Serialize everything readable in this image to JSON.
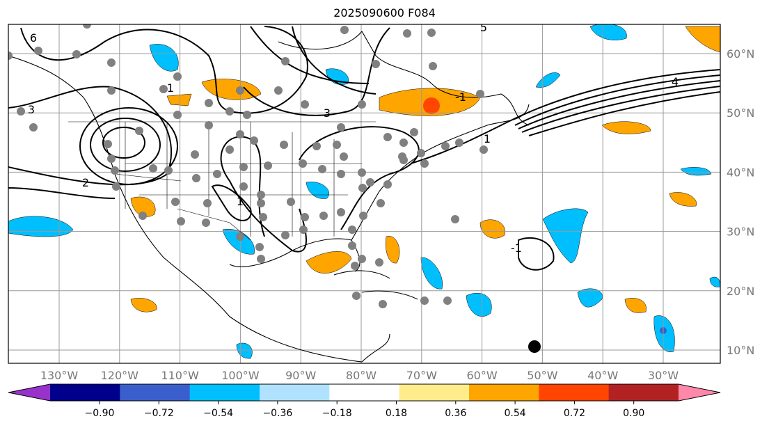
{
  "title": "2025090600 F084",
  "map": {
    "lon_ticks": [
      -130,
      -120,
      -110,
      -100,
      -90,
      -80,
      -70,
      -60,
      -50,
      -40,
      -30
    ],
    "lon_labels": [
      "130°W",
      "120°W",
      "110°W",
      "100°W",
      "90°W",
      "80°W",
      "70°W",
      "60°W",
      "50°W",
      "40°W",
      "30°W"
    ],
    "lat_ticks": [
      60,
      50,
      40,
      30,
      20,
      10
    ],
    "lat_labels": [
      "60°N",
      "50°N",
      "40°N",
      "30°N",
      "20°N",
      "10°N"
    ],
    "contour_labels": [
      "3",
      "2",
      "1",
      "3",
      "1",
      "4",
      "1",
      "-1",
      "-1",
      "6",
      "5"
    ]
  },
  "colorbar": {
    "colors": [
      "#9932cc",
      "#00008b",
      "#3a5fcd",
      "#00bfff",
      "#b0e2ff",
      "#ffffff",
      "#ffec8b",
      "#ffa500",
      "#ff4500",
      "#b22222",
      "#ff88aa"
    ],
    "ticks": [
      "−0.90",
      "−0.72",
      "−0.54",
      "−0.36",
      "−0.18",
      "0.18",
      "0.36",
      "0.54",
      "0.72",
      "0.90"
    ]
  }
}
